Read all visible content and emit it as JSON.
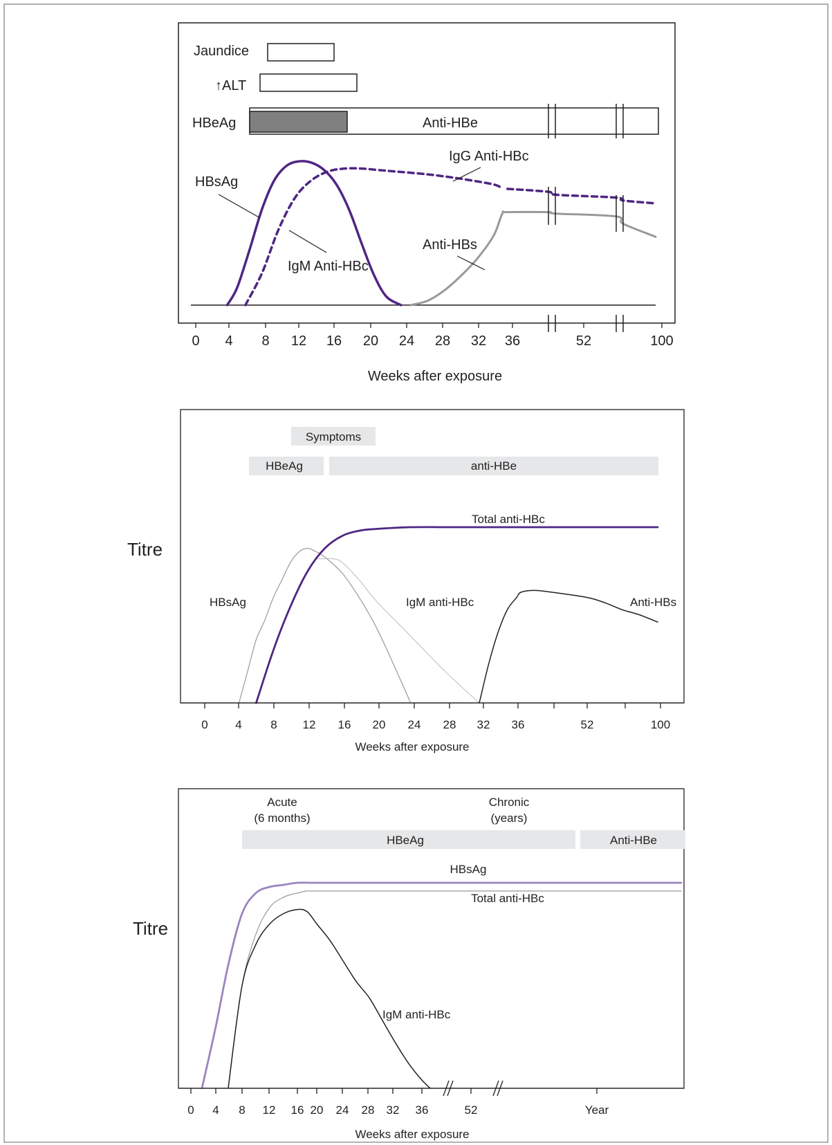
{
  "chart_data": [
    {
      "type": "line",
      "xlabel": "Weeks after exposure",
      "ylabel": "",
      "xticks": [
        "0",
        "4",
        "8",
        "12",
        "16",
        "20",
        "24",
        "28",
        "32",
        "36",
        "52",
        "100"
      ],
      "bars": [
        {
          "label": "Jaundice",
          "start": 8.5,
          "end": 16.3
        },
        {
          "label": "ALT",
          "arrow": "↑",
          "start": 7.5,
          "end": 19
        },
        {
          "label": "HBeAg",
          "start": 6.5,
          "end": 18,
          "filled": true,
          "fill": "#808080"
        },
        {
          "label": "Anti-HBe",
          "start": 6.5,
          "end": 100
        }
      ],
      "series": [
        {
          "name": "HBsAg",
          "color": "#4f2683",
          "style": "solid",
          "x": [
            3.8,
            5,
            6.5,
            8,
            9.5,
            11,
            12.5,
            14,
            15.5,
            17,
            18.5,
            20,
            21.5,
            23,
            24.8
          ],
          "y": [
            0,
            0.12,
            0.38,
            0.66,
            0.86,
            0.96,
            0.99,
            0.98,
            0.93,
            0.83,
            0.66,
            0.43,
            0.21,
            0.06,
            0
          ]
        },
        {
          "name": "IgM Anti-HBc",
          "color": "#4f2683",
          "style": "dashed",
          "x": [
            6,
            8,
            10,
            12,
            14,
            16,
            18,
            20,
            22,
            24,
            28,
            32,
            36,
            38.5
          ],
          "y": [
            0,
            0.22,
            0.52,
            0.74,
            0.86,
            0.92,
            0.94,
            0.94,
            0.93,
            0.92,
            0.9,
            0.87,
            0.83,
            0.8
          ]
        },
        {
          "name": "IgG Anti-HBc",
          "color": "#4f2683",
          "style": "dashed",
          "x": [
            40,
            52,
            64,
            76,
            88,
            100
          ],
          "y": [
            0.8,
            0.78,
            0.76,
            0.74,
            0.72,
            0.7
          ]
        },
        {
          "name": "Anti-HBs",
          "color": "#999999",
          "style": "solid",
          "x": [
            26,
            28,
            30,
            32,
            34,
            36,
            38.5,
            40,
            52,
            64,
            76,
            88,
            100
          ],
          "y": [
            0,
            0.03,
            0.1,
            0.2,
            0.32,
            0.48,
            0.63,
            0.64,
            0.64,
            0.63,
            0.61,
            0.56,
            0.47
          ]
        }
      ],
      "annotations": [
        "Jaundice",
        "ALT",
        "HBeAg",
        "Anti-HBe",
        "IgG Anti-HBc",
        "HBsAg",
        "IgM Anti-HBc",
        "Anti-HBs"
      ]
    },
    {
      "type": "line",
      "xlabel": "Weeks after exposure",
      "ylabel": "Titre",
      "xticks": [
        "0",
        "4",
        "8",
        "12",
        "16",
        "20",
        "24",
        "28",
        "32",
        "36",
        "52",
        "100"
      ],
      "bars": [
        {
          "label": "Symptoms",
          "start": 10,
          "end": 20
        },
        {
          "label": "HBeAg",
          "start": 5,
          "end": 14
        },
        {
          "label": "anti-HBe",
          "start": 14.5,
          "end": 100
        }
      ],
      "series": [
        {
          "name": "HBsAg",
          "color": "#999999",
          "x": [
            4,
            5,
            6,
            7,
            8,
            9,
            10,
            11,
            12,
            13,
            14,
            16,
            18,
            20,
            22,
            24
          ],
          "y": [
            0,
            0.18,
            0.36,
            0.47,
            0.6,
            0.7,
            0.8,
            0.86,
            0.88,
            0.86,
            0.83,
            0.74,
            0.6,
            0.43,
            0.22,
            0
          ]
        },
        {
          "name": "IgM anti-HBc",
          "color": "#bbbbbb",
          "x": [
            13,
            14,
            15,
            16,
            18,
            20,
            24,
            28,
            32
          ],
          "y": [
            0.82,
            0.82,
            0.82,
            0.8,
            0.7,
            0.58,
            0.38,
            0.18,
            0
          ]
        },
        {
          "name": "Total anti-HBc",
          "color": "#4f2683",
          "x": [
            6,
            8,
            10,
            12,
            14,
            16,
            18,
            20,
            24,
            28,
            32,
            36,
            52,
            100
          ],
          "y": [
            0,
            0.3,
            0.55,
            0.75,
            0.88,
            0.95,
            0.98,
            0.99,
            1,
            1,
            1,
            1,
            1,
            1
          ]
        },
        {
          "name": "Anti-HBs",
          "color": "#231f20",
          "x": [
            32,
            33,
            34,
            35,
            36,
            37,
            40,
            44,
            52,
            64,
            76,
            88,
            100
          ],
          "y": [
            0,
            0.22,
            0.4,
            0.53,
            0.6,
            0.63,
            0.64,
            0.63,
            0.6,
            0.57,
            0.53,
            0.5,
            0.46
          ]
        }
      ],
      "annotations": [
        "Symptoms",
        "HBeAg",
        "anti-HBe",
        "Total anti-HBc",
        "HBsAg",
        "IgM anti-HBc",
        "Anti-HBs"
      ]
    },
    {
      "type": "line",
      "xlabel": "Weeks after exposure",
      "ylabel": "Titre",
      "xticks": [
        "0",
        "4",
        "8",
        "12",
        "16",
        "20",
        "24",
        "28",
        "32",
        "36",
        "52",
        "Year"
      ],
      "phases": [
        {
          "line1": "Acute",
          "line2": "(6 months)"
        },
        {
          "line1": "Chronic",
          "line2": "(years)"
        }
      ],
      "bars": [
        {
          "label": "HBeAg",
          "start": 8,
          "end": 80
        },
        {
          "label": "Anti-HBe",
          "start": 80,
          "end": 100
        }
      ],
      "series": [
        {
          "name": "HBsAg",
          "color": "#9b85bd",
          "x": [
            2,
            4,
            6,
            8,
            10,
            12,
            14,
            16,
            20,
            30,
            40,
            60,
            80,
            100
          ],
          "y": [
            0,
            0.3,
            0.6,
            0.85,
            0.95,
            0.98,
            0.99,
            1,
            1,
            1,
            1,
            1,
            1,
            1
          ]
        },
        {
          "name": "Total anti-HBc",
          "color": "#999999",
          "x": [
            6,
            8,
            10,
            12,
            14,
            16,
            18,
            20,
            30,
            40,
            60,
            80,
            100
          ],
          "y": [
            0,
            0.5,
            0.75,
            0.88,
            0.93,
            0.95,
            0.96,
            0.96,
            0.96,
            0.96,
            0.96,
            0.96,
            0.96
          ]
        },
        {
          "name": "IgM anti-HBc",
          "color": "#231f20",
          "x": [
            6,
            8,
            10,
            12,
            14,
            16,
            18,
            20,
            22,
            24,
            26,
            28,
            30,
            32,
            34,
            36,
            38
          ],
          "y": [
            0,
            0.5,
            0.7,
            0.8,
            0.85,
            0.87,
            0.86,
            0.8,
            0.72,
            0.62,
            0.52,
            0.44,
            0.33,
            0.22,
            0.12,
            0.04,
            0
          ]
        }
      ],
      "annotations": [
        "HBsAg",
        "Total anti-HBc",
        "IgM anti-HBc"
      ]
    }
  ]
}
